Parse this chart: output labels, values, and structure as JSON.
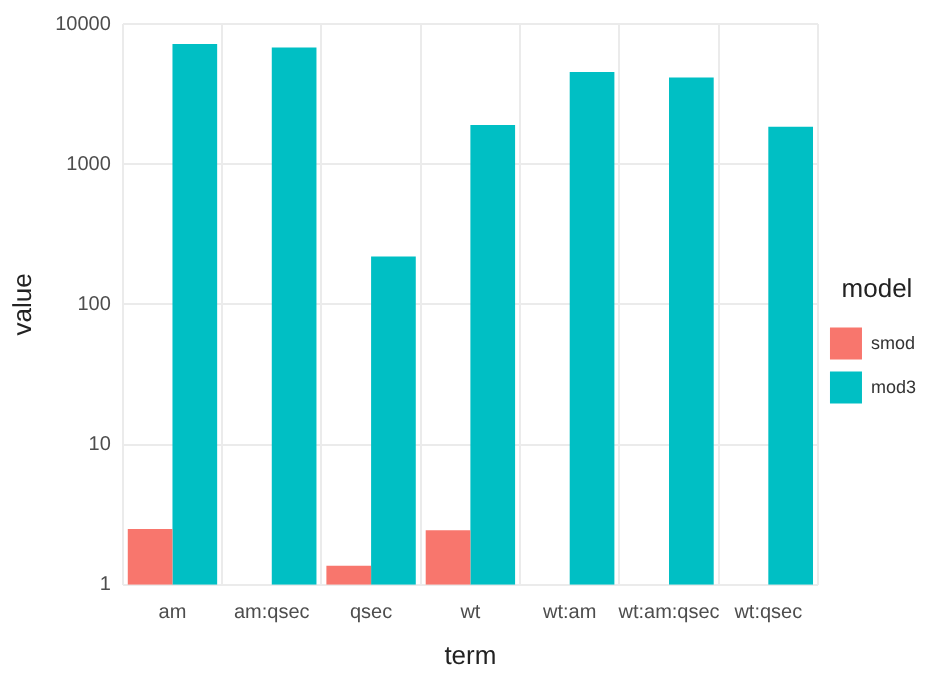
{
  "chart_data": {
    "type": "bar",
    "xlabel": "term",
    "ylabel": "value",
    "legend_title": "model",
    "categories": [
      "am",
      "am:qsec",
      "qsec",
      "wt",
      "wt:am",
      "wt:am:qsec",
      "wt:qsec"
    ],
    "series": [
      {
        "name": "smod",
        "color": "#f8766d",
        "values": [
          2.5,
          null,
          1.37,
          2.45,
          null,
          null,
          null
        ]
      },
      {
        "name": "mod3",
        "color": "#00bfc4",
        "values": [
          7200,
          6800,
          220,
          1900,
          4550,
          4150,
          1850
        ]
      }
    ],
    "log": "y",
    "ylim": [
      1,
      10000
    ],
    "yticks": [
      1,
      10,
      100,
      1000,
      10000
    ],
    "grid": true,
    "legend": "right"
  }
}
